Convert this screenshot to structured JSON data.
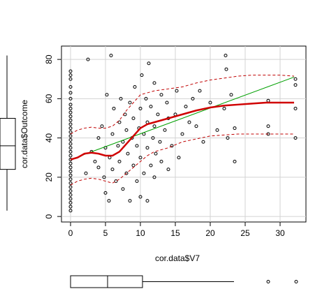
{
  "chart_data": {
    "type": "scatter",
    "x_label": "cor.data$V7",
    "y_label": "cor.data$Outcome",
    "xlim": [
      -1.3,
      33.7
    ],
    "ylim": [
      -2.8,
      86.8
    ],
    "xticks": [
      0,
      5,
      10,
      15,
      20,
      25,
      30
    ],
    "yticks": [
      0,
      20,
      40,
      60,
      80
    ],
    "grid": true,
    "points": {
      "color": "#000000",
      "x": [
        0,
        0,
        0,
        0,
        0,
        0,
        0,
        0,
        0,
        0,
        0,
        0,
        0,
        0,
        0,
        0,
        0,
        0,
        0,
        0,
        0,
        0,
        0,
        0,
        0,
        0,
        0,
        0,
        0,
        0,
        0,
        0,
        0,
        0,
        2.2,
        2.5,
        3,
        3.5,
        4,
        4,
        4.5,
        4.8,
        5,
        5,
        5.2,
        5.5,
        5.6,
        5.8,
        6,
        6,
        6.2,
        6.5,
        6.8,
        7,
        7,
        7.2,
        7.5,
        7.5,
        7.8,
        8,
        8,
        8.2,
        8.5,
        8.5,
        8.8,
        9,
        9,
        9.2,
        9.5,
        9.5,
        9.8,
        10,
        10,
        10,
        10.2,
        10.5,
        10.5,
        10.8,
        11,
        11,
        11,
        11.2,
        11.5,
        11.5,
        11.8,
        12,
        12,
        12,
        12.2,
        12.5,
        12.8,
        13,
        13,
        13.5,
        13.8,
        14,
        14,
        14.5,
        15,
        15.2,
        15.5,
        16,
        16.5,
        17,
        17.5,
        18,
        18.5,
        19,
        20,
        21,
        22,
        22.2,
        22.3,
        22.5,
        23,
        23.5,
        23.5,
        28.3,
        28.3,
        28.3,
        32.2,
        32.2,
        32.2,
        32.2
      ],
      "y": [
        3,
        5,
        7,
        9,
        11,
        13,
        15,
        17,
        19,
        21,
        23,
        25,
        27,
        29,
        31,
        33,
        35,
        37,
        39,
        41,
        43,
        45,
        47,
        49,
        51,
        53,
        55,
        57,
        60,
        63,
        66,
        70,
        72,
        74,
        22,
        80,
        33,
        28,
        25,
        40,
        46,
        20,
        12,
        35,
        62,
        8,
        30,
        82,
        24,
        42,
        55,
        18,
        36,
        28,
        48,
        60,
        14,
        38,
        52,
        22,
        44,
        32,
        8,
        58,
        40,
        26,
        50,
        66,
        18,
        36,
        45,
        10,
        30,
        55,
        72,
        22,
        42,
        60,
        8,
        35,
        48,
        78,
        26,
        56,
        40,
        20,
        46,
        68,
        32,
        52,
        38,
        62,
        28,
        44,
        58,
        24,
        50,
        36,
        52,
        64,
        30,
        42,
        56,
        48,
        60,
        46,
        64,
        38,
        58,
        44,
        55,
        82,
        75,
        40,
        62,
        28,
        45,
        59,
        46,
        42,
        70,
        67,
        55,
        40
      ]
    },
    "lines": [
      {
        "name": "linear fit",
        "color": "#00a000",
        "dash": false,
        "x": [
          0,
          32
        ],
        "y": [
          29,
          71
        ]
      },
      {
        "name": "smooth",
        "color": "#d00000",
        "dash": false,
        "x": [
          0,
          1,
          2,
          3,
          4,
          5,
          6,
          7,
          8,
          9,
          10,
          11,
          12,
          14,
          16,
          18,
          20,
          22,
          24,
          26,
          28,
          30,
          32
        ],
        "y": [
          29,
          30,
          32,
          32.5,
          32,
          31,
          31,
          33,
          37,
          41,
          45,
          47,
          48,
          50,
          52,
          54,
          55.5,
          56.5,
          57,
          57.5,
          58,
          58,
          58
        ]
      },
      {
        "name": "upper spread",
        "color": "#c00000",
        "dash": true,
        "x": [
          0,
          1,
          2,
          3,
          4,
          5,
          6,
          7,
          8,
          9,
          10,
          11,
          12,
          14,
          16,
          18,
          20,
          22,
          24,
          26,
          28,
          30,
          32
        ],
        "y": [
          42,
          44,
          45,
          45.5,
          45,
          45,
          46,
          49,
          54,
          58,
          62,
          63,
          64,
          65,
          66,
          68,
          69.5,
          70.5,
          71.5,
          72,
          72,
          72,
          71.5
        ]
      },
      {
        "name": "lower spread",
        "color": "#c00000",
        "dash": true,
        "x": [
          0,
          1,
          2,
          3,
          4,
          5,
          6,
          7,
          8,
          9,
          10,
          11,
          12,
          14,
          16,
          18,
          20,
          22,
          24,
          26,
          28,
          30,
          32
        ],
        "y": [
          16,
          18,
          19,
          19.5,
          19,
          18,
          17,
          19,
          22,
          25,
          28,
          31,
          33,
          35,
          38,
          39.5,
          41,
          41.5,
          42,
          42,
          42,
          42,
          42
        ]
      }
    ],
    "x_boxplot": {
      "whisker_low": 0,
      "q1": 0,
      "median": 5.3,
      "q3": 10.3,
      "whisker_high": 23.4,
      "outliers": [
        28.3,
        32.3
      ]
    },
    "y_boxplot": {
      "whisker_low": 3,
      "q1": 24,
      "median": 36,
      "q3": 50,
      "whisker_high": 82,
      "outliers": []
    }
  }
}
